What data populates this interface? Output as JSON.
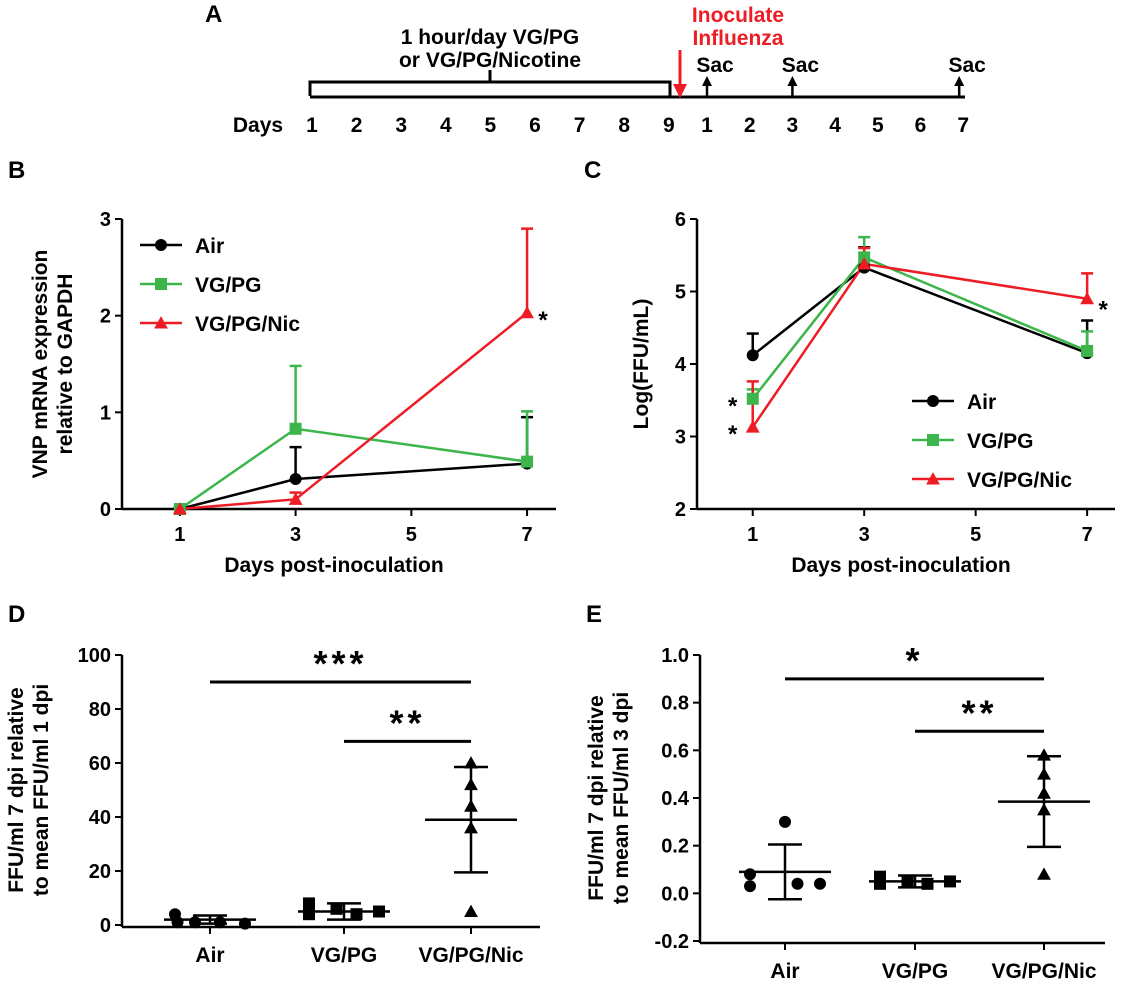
{
  "colors": {
    "air": "#000000",
    "vgpg": "#3cb54a",
    "vgpgnic": "#ee1c25",
    "inoculate": "#ee1c25"
  },
  "panels": {
    "A": "A",
    "B": "B",
    "C": "C",
    "D": "D",
    "E": "E"
  },
  "timeline": {
    "exposure_line1": "1 hour/day VG/PG",
    "exposure_line2": "or VG/PG/Nicotine",
    "inoculate_line1": "Inoculate",
    "inoculate_line2": "Influenza",
    "days_label": "Days",
    "exposure_days": [
      "1",
      "2",
      "3",
      "4",
      "5",
      "6",
      "7",
      "8",
      "9"
    ],
    "infection_days": [
      "1",
      "2",
      "3",
      "4",
      "5",
      "6",
      "7"
    ],
    "sac_label": "Sac",
    "sac_days": [
      1,
      3,
      7
    ]
  },
  "chart_data": [
    {
      "panel": "B",
      "type": "line",
      "x": [
        1,
        3,
        7
      ],
      "xticks": [
        "1",
        "3",
        "5",
        "7"
      ],
      "xtick_values": [
        1,
        3,
        5,
        7
      ],
      "xlim": [
        0,
        7.5
      ],
      "ylim": [
        0,
        3
      ],
      "yticks": [
        "0",
        "1",
        "2",
        "3"
      ],
      "ytick_values": [
        0,
        1,
        2,
        3
      ],
      "xlabel": "Days post-inoculation",
      "ylabel_line1": "VNP mRNA expression",
      "ylabel_line2": "relative to GAPDH",
      "legend": "top-left",
      "series": [
        {
          "name": "Air",
          "key": "air",
          "marker": "circle",
          "values": [
            0,
            0.31,
            0.47
          ],
          "err": [
            0.02,
            0.33,
            0.48
          ]
        },
        {
          "name": "VG/PG",
          "key": "vgpg",
          "marker": "square",
          "values": [
            0,
            0.83,
            0.49
          ],
          "err": [
            0.02,
            0.65,
            0.52
          ]
        },
        {
          "name": "VG/PG/Nic",
          "key": "vgpgnic",
          "marker": "triangle",
          "values": [
            0,
            0.1,
            2.03
          ],
          "err": [
            0.01,
            0.07,
            0.87
          ]
        }
      ],
      "annotations": [
        {
          "text": "*",
          "x": 7,
          "y": 2.03,
          "side": "right"
        }
      ]
    },
    {
      "panel": "C",
      "type": "line",
      "x": [
        1,
        3,
        7
      ],
      "xticks": [
        "1",
        "3",
        "5",
        "7"
      ],
      "xtick_values": [
        1,
        3,
        5,
        7
      ],
      "xlim": [
        0,
        7.5
      ],
      "ylim": [
        2,
        6
      ],
      "yticks": [
        "2",
        "3",
        "4",
        "5",
        "6"
      ],
      "ytick_values": [
        2,
        3,
        4,
        5,
        6
      ],
      "xlabel": "Days post-inoculation",
      "ylabel": "Log(FFU/mL)",
      "legend": "bottom-right",
      "series": [
        {
          "name": "Air",
          "key": "air",
          "marker": "circle",
          "values": [
            4.12,
            5.33,
            4.15
          ],
          "err": [
            0.3,
            0.28,
            0.45
          ]
        },
        {
          "name": "VG/PG",
          "key": "vgpg",
          "marker": "square",
          "values": [
            3.52,
            5.47,
            4.18
          ],
          "err": [
            0.13,
            0.28,
            0.27
          ]
        },
        {
          "name": "VG/PG/Nic",
          "key": "vgpgnic",
          "marker": "triangle",
          "values": [
            3.13,
            5.38,
            4.9
          ],
          "err": [
            0.63,
            0.22,
            0.35
          ]
        }
      ],
      "annotations": [
        {
          "text": "*",
          "x": 1,
          "y": 3.52,
          "side": "left"
        },
        {
          "text": "*",
          "x": 1,
          "y": 3.13,
          "side": "left"
        },
        {
          "text": "*",
          "x": 7,
          "y": 4.85,
          "side": "right"
        }
      ]
    },
    {
      "panel": "D",
      "type": "scatter",
      "categories": [
        "Air",
        "VG/PG",
        "VG/PG/Nic"
      ],
      "ylim": [
        0,
        100
      ],
      "yticks": [
        "0",
        "20",
        "40",
        "60",
        "80",
        "100"
      ],
      "ytick_values": [
        0,
        20,
        40,
        60,
        80,
        100
      ],
      "ylabel_line1": "FFU/ml 7 dpi relative",
      "ylabel_line2": "to mean FFU/ml 1 dpi",
      "groups": [
        {
          "name": "Air",
          "marker": "circle",
          "points": [
            {
              "o": -1.4,
              "v": 4
            },
            {
              "o": -1.3,
              "v": 1
            },
            {
              "o": -0.6,
              "v": 1
            },
            {
              "o": 0.4,
              "v": 1
            },
            {
              "o": 1.4,
              "v": 0.5
            }
          ],
          "mean": 2,
          "sd": 1.5
        },
        {
          "name": "VG/PG",
          "marker": "square",
          "points": [
            {
              "o": -1.4,
              "v": 8
            },
            {
              "o": -1.4,
              "v": 4
            },
            {
              "o": -0.3,
              "v": 6
            },
            {
              "o": 0.5,
              "v": 4
            },
            {
              "o": 1.4,
              "v": 5
            }
          ],
          "mean": 5,
          "sd": 3
        },
        {
          "name": "VG/PG/Nic",
          "marker": "triangle",
          "points": [
            {
              "o": 0,
              "v": 60
            },
            {
              "o": 0,
              "v": 52
            },
            {
              "o": 0,
              "v": 44
            },
            {
              "o": 0,
              "v": 36
            },
            {
              "o": 0,
              "v": 5
            }
          ],
          "mean": 39,
          "sd": 19.5
        }
      ],
      "significance": [
        {
          "from": 0,
          "to": 2,
          "y": 90,
          "label": "***"
        },
        {
          "from": 1,
          "to": 2,
          "y": 68,
          "label": "**"
        }
      ]
    },
    {
      "panel": "E",
      "type": "scatter",
      "categories": [
        "Air",
        "VG/PG",
        "VG/PG/Nic"
      ],
      "ylim": [
        -0.2,
        1.0
      ],
      "yticks": [
        "-0.2",
        "0.0",
        "0.2",
        "0.4",
        "0.6",
        "0.8",
        "1.0"
      ],
      "ytick_values": [
        -0.2,
        0,
        0.2,
        0.4,
        0.6,
        0.8,
        1.0
      ],
      "ylabel_line1": "FFU/ml 7 dpi relative",
      "ylabel_line2": "to mean FFU/ml 3 dpi",
      "groups": [
        {
          "name": "Air",
          "marker": "circle",
          "points": [
            {
              "o": -1.4,
              "v": 0.08
            },
            {
              "o": -1.4,
              "v": 0.03
            },
            {
              "o": 0,
              "v": 0.3
            },
            {
              "o": 0.5,
              "v": 0.04
            },
            {
              "o": 1.4,
              "v": 0.04
            }
          ],
          "mean": 0.09,
          "sd": 0.115
        },
        {
          "name": "VG/PG",
          "marker": "square",
          "points": [
            {
              "o": -1.4,
              "v": 0.07
            },
            {
              "o": -1.4,
              "v": 0.04
            },
            {
              "o": -0.3,
              "v": 0.05
            },
            {
              "o": 0.5,
              "v": 0.04
            },
            {
              "o": 1.4,
              "v": 0.05
            }
          ],
          "mean": 0.05,
          "sd": 0.025
        },
        {
          "name": "VG/PG/Nic",
          "marker": "triangle",
          "points": [
            {
              "o": 0,
              "v": 0.58
            },
            {
              "o": 0,
              "v": 0.5
            },
            {
              "o": 0,
              "v": 0.42
            },
            {
              "o": 0,
              "v": 0.35
            },
            {
              "o": 0,
              "v": 0.08
            }
          ],
          "mean": 0.385,
          "sd": 0.19
        }
      ],
      "significance": [
        {
          "from": 0,
          "to": 2,
          "y": 0.9,
          "label": "*"
        },
        {
          "from": 1,
          "to": 2,
          "y": 0.68,
          "label": "**"
        }
      ]
    }
  ]
}
